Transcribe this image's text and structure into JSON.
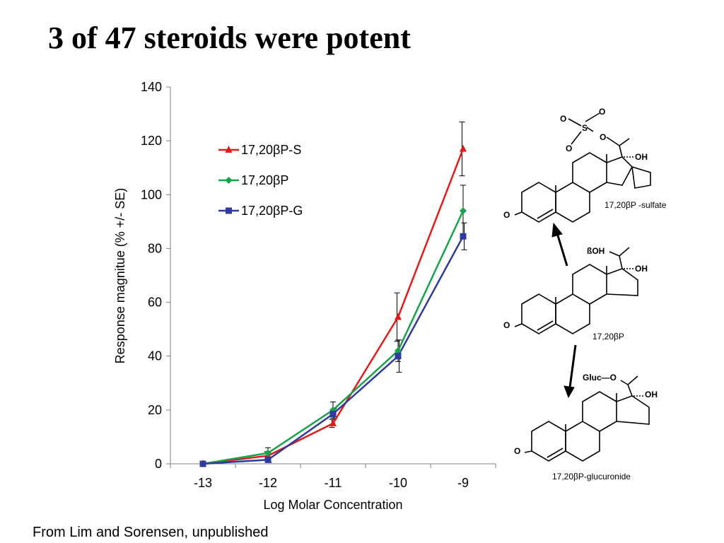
{
  "slide": {
    "title": "3 of 47 steroids were potent",
    "footer": "From Lim and Sorensen, unpublished"
  },
  "chart_data": {
    "type": "line",
    "title": "",
    "xlabel": "Log Molar Concentration",
    "ylabel": "Response magnitue (% +/- SE)",
    "x": [
      -13,
      -12,
      -11,
      -10,
      -9
    ],
    "xticks": [
      "-13",
      "-12",
      "-11",
      "-10",
      "-9"
    ],
    "yticks": [
      "0",
      "20",
      "40",
      "60",
      "80",
      "100",
      "120",
      "140"
    ],
    "ylim": [
      0,
      140
    ],
    "grid": false,
    "legend_position": "top-left",
    "series": [
      {
        "name": "17,20βP-S",
        "color": "#e31a1c",
        "marker": "triangle",
        "values": [
          0,
          3,
          15,
          54.5,
          117
        ],
        "errors": [
          0,
          1.5,
          1.5,
          9,
          10
        ]
      },
      {
        "name": "17,20βP",
        "color": "#16a34a",
        "marker": "diamond",
        "values": [
          0,
          4,
          20,
          42,
          94
        ],
        "errors": [
          0,
          2,
          3,
          4,
          9.5
        ]
      },
      {
        "name": "17,20βP-G",
        "color": "#2e3a9c",
        "marker": "square",
        "values": [
          0,
          1.5,
          18.5,
          40,
          84.5
        ],
        "errors": [
          0,
          1,
          2,
          6,
          5
        ]
      }
    ]
  },
  "structures": {
    "sulfate": {
      "caption": "17,20βP -sulfate",
      "atoms": {
        "o1": "O",
        "o2": "O",
        "s": "S",
        "o3": "O",
        "o4": "O",
        "oh": "OH",
        "ketone_o": "O"
      }
    },
    "parent": {
      "caption": "17,20βP",
      "atoms": {
        "betaoh": "ßOH",
        "oh": "OH",
        "ketone_o": "O"
      }
    },
    "glucuronide": {
      "caption": "17,20βP-glucuronide",
      "atoms": {
        "gluc": "Gluc—O",
        "oh": "OH",
        "ketone_o": "O"
      }
    }
  }
}
